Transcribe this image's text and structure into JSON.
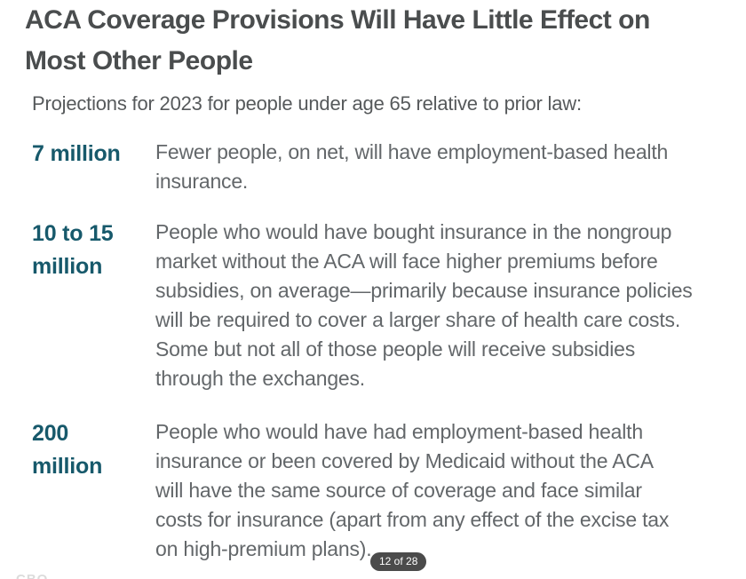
{
  "slide": {
    "title": "ACA Coverage Provisions Will Have Little Effect on\nMost Other People",
    "subtitle": "Projections for 2023 for people under age 65 relative to prior law:",
    "rows": [
      {
        "label": "7 million",
        "text": "Fewer people, on net, will have employment-based health\ninsurance."
      },
      {
        "label": "10 to 15\nmillion",
        "text": "People who would have bought insurance in the nongroup\nmarket without the ACA will face higher premiums before\nsubsidies, on average—primarily because insurance policies\nwill be required to cover a larger share of health care costs.\nSome but not all of those people will receive subsidies\nthrough the exchanges."
      },
      {
        "label": "200\nmillion",
        "text": "People who would have had employment-based health\ninsurance or been covered by Medicaid without the ACA\nwill have the same source of coverage and face similar\ncosts for insurance (apart from any effect of the excise tax\non high-premium plans)."
      }
    ],
    "page_badge": "12 of 28",
    "watermark": "CBO",
    "colors": {
      "accent_teal": "#17596b",
      "title_gray": "#4a4d4e",
      "subtitle_gray": "#56595b",
      "body_gray": "#63676a",
      "badge_bg": "#4b4b4b",
      "badge_text": "#ffffff",
      "watermark_gray": "#dcdcdc",
      "background": "#ffffff"
    }
  }
}
